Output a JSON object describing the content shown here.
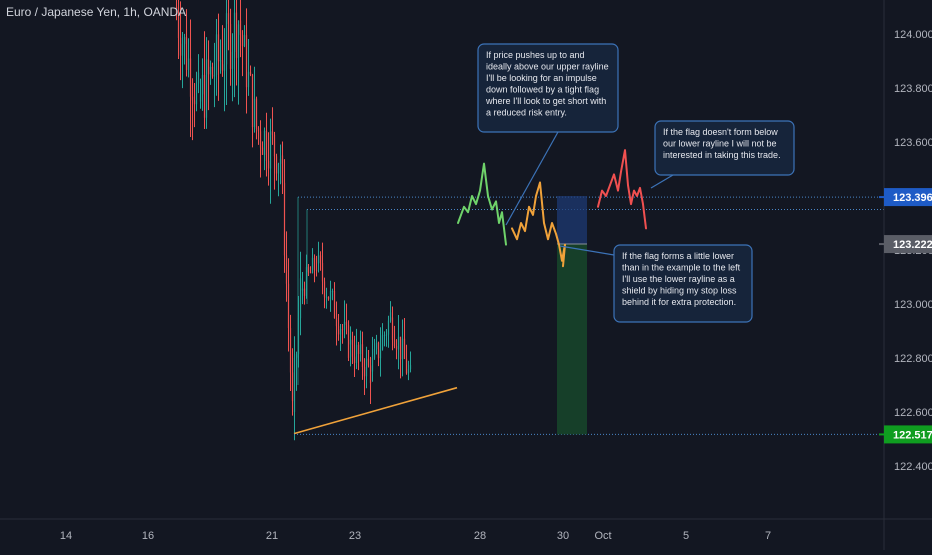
{
  "header": {
    "symbol_title": "Euro / Japanese Yen, 1h, OANDA"
  },
  "chart_data": {
    "type": "candlestick",
    "title": "Euro / Japanese Yen, 1h, OANDA",
    "ylim": [
      122.32,
      124.15
    ],
    "y_ticks": [
      "124.000",
      "123.800",
      "123.600",
      "123.400",
      "123.200",
      "123.000",
      "122.800",
      "122.600",
      "122.400"
    ],
    "x_ticks": [
      "14",
      "16",
      "21",
      "23",
      "28",
      "30",
      "Oct",
      "5",
      "7"
    ],
    "price_tags": [
      {
        "label": "123.396",
        "value": 123.396,
        "color": "#1e5bc6"
      },
      {
        "label": "123.222",
        "value": 123.222,
        "color": "#5a5d66"
      },
      {
        "label": "122.517",
        "value": 122.517,
        "color": "#0f9d20"
      }
    ],
    "levels": {
      "upper_rayline": 123.396,
      "second_rayline": 123.35,
      "lower_rayline": 122.517,
      "rising_trendline": [
        122.52,
        122.69
      ]
    },
    "annotations": [
      {
        "lines": [
          "If price pushes up to and",
          "ideally above our upper rayline",
          "I'll be looking for an impulse",
          "down followed by a tight flag",
          "where I'll look to get short with",
          "a reduced risk entry."
        ]
      },
      {
        "lines": [
          "If the flag doesn't form below",
          "our lower rayline I will not be",
          "interested in taking this trade."
        ]
      },
      {
        "lines": [
          "If the flag forms a little lower",
          "than in the example to the left",
          "I'll use the lower rayline as a",
          "shield by hiding my stop loss",
          "behind it for extra protection."
        ]
      }
    ],
    "colors": {
      "background": "#131722",
      "bull": "#26a69a",
      "bear": "#ef5350",
      "trendline": "#f0a23a",
      "rayline": "#4a86c7",
      "path_green": "#6fd36a",
      "path_orange": "#f0a23a",
      "path_red": "#f05050"
    }
  }
}
